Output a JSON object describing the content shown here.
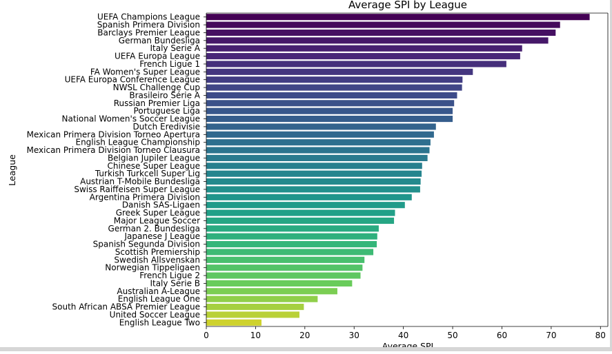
{
  "chart_data": {
    "type": "bar",
    "orientation": "horizontal",
    "title": "Average SPI by League",
    "xlabel": "Average SPI",
    "ylabel": "League",
    "xlim": [
      0,
      81.5
    ],
    "xticks": [
      0,
      10,
      20,
      30,
      40,
      50,
      60,
      70,
      80
    ],
    "grid": false,
    "palette": "viridis",
    "categories": [
      "UEFA Champions League",
      "Spanish Primera Division",
      "Barclays Premier League",
      "German Bundesliga",
      "Italy Serie A",
      "UEFA Europa League",
      "French Ligue 1",
      "FA Women's Super League",
      "UEFA Europa Conference League",
      "NWSL Challenge Cup",
      "Brasileiro Série A",
      "Russian Premier Liga",
      "Portuguese Liga",
      "National Women's Soccer League",
      "Dutch Eredivisie",
      "Mexican Primera Division Torneo Apertura",
      "English League Championship",
      "Mexican Primera Division Torneo Clausura",
      "Belgian Jupiler League",
      "Chinese Super League",
      "Turkish Turkcell Super Lig",
      "Austrian T-Mobile Bundesliga",
      "Swiss Raiffeisen Super League",
      "Argentina Primera Division",
      "Danish SAS-Ligaen",
      "Greek Super League",
      "Major League Soccer",
      "German 2. Bundesliga",
      "Japanese J League",
      "Spanish Segunda Division",
      "Scottish Premiership",
      "Swedish Allsvenskan",
      "Norwegian Tippeligaen",
      "French Ligue 2",
      "Italy Serie B",
      "Australian A-League",
      "English League One",
      "South African ABSA Premier League",
      "United Soccer League",
      "English League Two"
    ],
    "values": [
      77.8,
      71.8,
      70.9,
      69.4,
      64.1,
      63.7,
      60.9,
      54.1,
      52.0,
      51.9,
      50.9,
      50.3,
      50.0,
      50.0,
      46.6,
      46.2,
      45.5,
      45.3,
      44.9,
      43.8,
      43.7,
      43.5,
      43.4,
      41.7,
      40.3,
      38.3,
      38.1,
      35.0,
      34.7,
      34.6,
      33.9,
      32.1,
      31.7,
      31.3,
      29.6,
      26.6,
      22.6,
      19.8,
      18.9,
      11.2
    ]
  }
}
